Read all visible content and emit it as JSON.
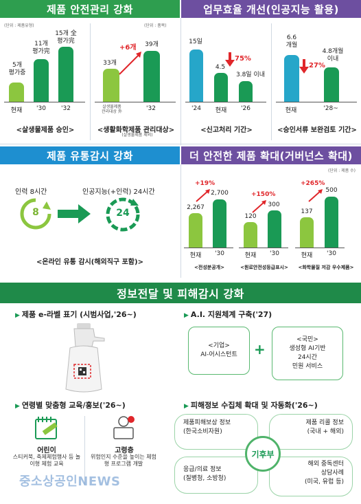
{
  "headers": {
    "h1": "제품 안전관리 강화",
    "h2": "업무효율 개선(인공지능 활용)",
    "h3": "제품 유통감시 강화",
    "h4": "더 안전한 제품 확대(거버넌스 확대)",
    "h5": "정보전달 및 피해감시 강화"
  },
  "units": {
    "u1": "(단위 : 제품유형)",
    "u2": "(단위 : 품목)",
    "u3": "(단위 : 제품 수)"
  },
  "chart_data": [
    {
      "type": "bar",
      "title": "<살생물제품 승인>",
      "categories": [
        "현재",
        "'30",
        "'32"
      ],
      "values": [
        5,
        11,
        15
      ],
      "value_labels": [
        "5개 평가중",
        "11개 평가完",
        "15개 全 평가完"
      ]
    },
    {
      "type": "bar",
      "title": "<생활화학제품 관리대상>",
      "categories": [
        "살생물제품 관리대상 外 (살생물제품 제외)",
        "'32"
      ],
      "values": [
        33,
        39
      ],
      "value_labels": [
        "33개",
        "39개"
      ],
      "annotation": "+6개"
    },
    {
      "type": "bar",
      "title": "<신고처리 기간>",
      "categories": [
        "'24",
        "현재",
        "'26"
      ],
      "values": [
        15,
        4.5,
        3.8
      ],
      "value_labels": [
        "15일",
        "4.5",
        "3.8일 이내"
      ],
      "annotation": "75%"
    },
    {
      "type": "bar",
      "title": "<승인서류 보완검토 기간>",
      "categories": [
        "현재",
        "'28~"
      ],
      "values": [
        6.6,
        4.8
      ],
      "value_labels": [
        "6.6 개월",
        "4.8개월 이내"
      ],
      "annotation": "27%"
    },
    {
      "type": "bar",
      "title": "<전성분공개>",
      "categories": [
        "현재",
        "'30"
      ],
      "values": [
        2267,
        2700
      ],
      "value_labels": [
        "2,267",
        "2,700"
      ],
      "annotation": "+19%"
    },
    {
      "type": "bar",
      "title": "<원료안전성등급표시>",
      "categories": [
        "현재",
        "'30"
      ],
      "values": [
        120,
        300
      ],
      "value_labels": [
        "120",
        "300"
      ],
      "annotation": "+150%"
    },
    {
      "type": "bar",
      "title": "<화학물질 저감 우수제품>",
      "categories": [
        "현재",
        "'30"
      ],
      "values": [
        137,
        500
      ],
      "value_labels": [
        "137",
        "500"
      ],
      "annotation": "+265%"
    }
  ],
  "monitor": {
    "left_label": "인력 8시간",
    "left_num": "8",
    "right_label": "인공지능(+인력) 24시간",
    "right_num": "24",
    "caption": "<온라인 유통 감시(해외직구 포함)>"
  },
  "bottom": {
    "elabel_title": "제품 e-라벨 표기 (시범사업,'26~)",
    "ai_title": "A.I. 지원체계 구축('27)",
    "box_company_1": "<기업>",
    "box_company_2": "AI-어시스턴트",
    "box_citizen_1": "<국민>",
    "box_citizen_2": "생성형 AI기반",
    "box_citizen_3": "24시간",
    "box_citizen_4": "민원 서비스",
    "plus": "+",
    "edu_title": "연령별 맞춤형 교육/홍보('26~)",
    "child_title": "어린이",
    "child_desc": "스티커북, 축제체험행사 등 놀이형 체험 교육",
    "senior_title": "고령층",
    "senior_desc": "위험인지 수준을 높이는 체험형 프로그램 개발",
    "damage_title": "피해정보 수집체 확대 및 자동화('26~)",
    "hub": "기후부",
    "p1_1": "제품피해보상 정보",
    "p1_2": "(한국소비자원)",
    "p2_1": "제품 리콜 정보",
    "p2_2": "(국내 + 해외)",
    "p3_1": "응급/의료 정보",
    "p3_2": "(질병청, 소방청)",
    "p4_1": "해외 중독센터",
    "p4_2": "상담사례",
    "p4_3": "(미국, 유럽 등)"
  },
  "watermark": "중소상공인NEWS",
  "colors": {
    "light_green": "#8cc63f",
    "dark_green": "#1a9a55",
    "teal": "#26a6c9",
    "purple": "#6d4fa0",
    "blue": "#1e8fd0",
    "red": "#e0262a"
  }
}
